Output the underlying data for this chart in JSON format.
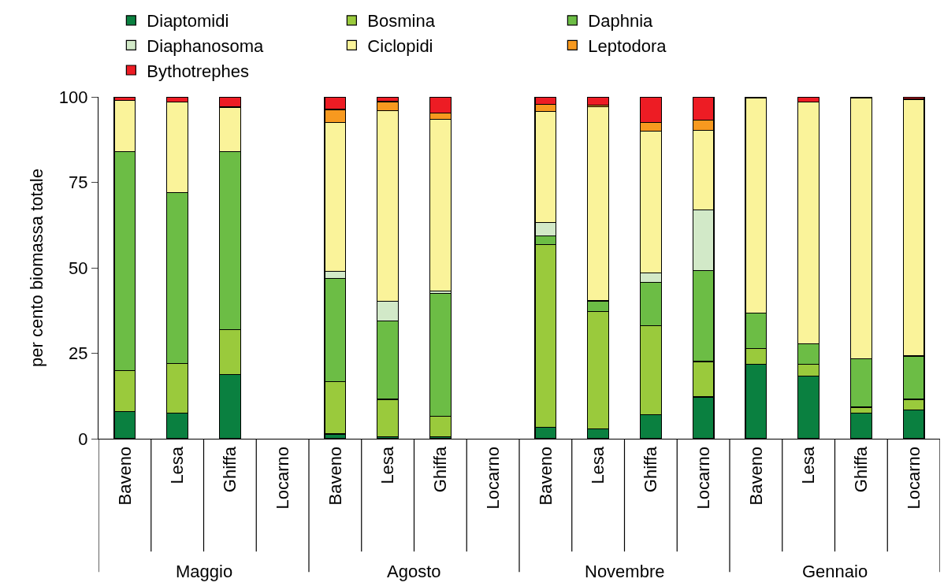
{
  "chart_data": {
    "type": "bar",
    "stacked": true,
    "ylabel": "per cento biomassa totale",
    "ylim": [
      0,
      100
    ],
    "yticks": [
      0,
      25,
      50,
      75,
      100
    ],
    "legend": "top",
    "categories": [
      "Baveno",
      "Lesa",
      "Ghiffa",
      "Locarno",
      "Baveno",
      "Lesa",
      "Ghiffa",
      "Locarno",
      "Baveno",
      "Lesa",
      "Ghiffa",
      "Locarno",
      "Baveno",
      "Lesa",
      "Ghiffa",
      "Locarno"
    ],
    "annotations": [
      "Maggio",
      "Agosto",
      "Novembre",
      "Gennaio"
    ],
    "series": [
      {
        "name": "Diaptomidi",
        "color": "#0a8040",
        "values": [
          8,
          7.5,
          18.8,
          null,
          1.4,
          0.6,
          0.6,
          null,
          3.4,
          2.8,
          7.1,
          12.2,
          21.8,
          18.3,
          7.5,
          8.5
        ]
      },
      {
        "name": "Bosmina",
        "color": "#9aca3c",
        "values": [
          12,
          14.5,
          13.2,
          null,
          15.3,
          10.9,
          5.9,
          null,
          53.4,
          34.5,
          26,
          10.4,
          4.5,
          3.4,
          1.7,
          3
        ]
      },
      {
        "name": "Daphnia",
        "color": "#6cbd45",
        "values": [
          64,
          50,
          52,
          null,
          30.1,
          23,
          36,
          null,
          2.5,
          2.9,
          12.7,
          26.6,
          10.5,
          6,
          14.2,
          12.7
        ]
      },
      {
        "name": "Diaphanosoma",
        "color": "#d2e9c8",
        "values": [
          0,
          0,
          0,
          null,
          2.2,
          5.8,
          0.7,
          null,
          4,
          0.2,
          2.7,
          17.8,
          0,
          0,
          0,
          0
        ]
      },
      {
        "name": "Ciclopidi",
        "color": "#faf39a",
        "values": [
          15,
          26.5,
          13,
          null,
          43.5,
          55.7,
          50.3,
          null,
          32.5,
          56.7,
          41.5,
          23.3,
          62.8,
          70.8,
          76.2,
          75.1
        ]
      },
      {
        "name": "Leptodora",
        "color": "#f7991f",
        "values": [
          0,
          0,
          0,
          null,
          3.8,
          2.6,
          1.7,
          null,
          2,
          0.5,
          2.5,
          2.9,
          0,
          0,
          0,
          0
        ]
      },
      {
        "name": "Bythotrephes",
        "color": "#ed1c24",
        "values": [
          1,
          1.5,
          3,
          null,
          3.7,
          1.4,
          4.8,
          null,
          2.2,
          2.4,
          7.5,
          6.8,
          0.4,
          1.5,
          0.4,
          0.7
        ]
      }
    ]
  }
}
